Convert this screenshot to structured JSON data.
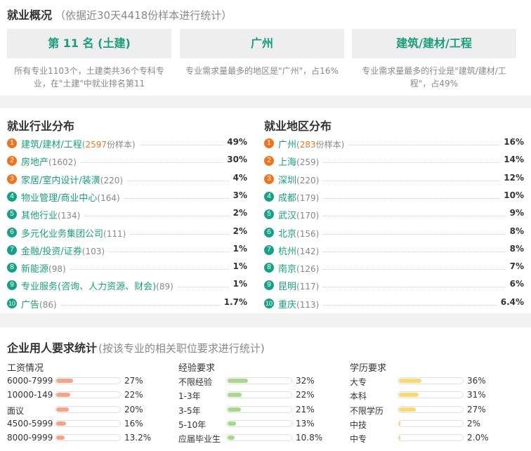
{
  "overview": {
    "title": "就业概况",
    "subtitle": "（依据近30天4418份样本进行统计）",
    "cards": [
      {
        "value": "第 11 名 (土建)",
        "desc": "所有专业1103个，土建类共36个专科专业，在\"土建\"中就业排名第11"
      },
      {
        "value": "广州",
        "desc": "专业需求量最多的地区是\"广州\"，占16%"
      },
      {
        "value": "建筑/建材/工程",
        "desc": "专业需求量最多的行业是\"建筑/建材/工程\"，占49%"
      }
    ]
  },
  "industry": {
    "title": "就业行业分布",
    "items": [
      {
        "rank": "1",
        "name": "建筑/建材/工程",
        "count": "(2597份样本)",
        "pct": "49%"
      },
      {
        "rank": "2",
        "name": "房地产",
        "count": "(1602)",
        "pct": "30%"
      },
      {
        "rank": "3",
        "name": "家居/室内设计/装潢",
        "count": "(220)",
        "pct": "4%"
      },
      {
        "rank": "4",
        "name": "物业管理/商业中心",
        "count": "(164)",
        "pct": "3%"
      },
      {
        "rank": "5",
        "name": "其他行业",
        "count": "(134)",
        "pct": "2%"
      },
      {
        "rank": "6",
        "name": "多元化业务集团公司",
        "count": "(111)",
        "pct": "2%"
      },
      {
        "rank": "7",
        "name": "金融/投资/证券",
        "count": "(103)",
        "pct": "1%"
      },
      {
        "rank": "8",
        "name": "新能源",
        "count": "(98)",
        "pct": "1%"
      },
      {
        "rank": "9",
        "name": "专业服务(咨询、人力资源、财会)",
        "count": "(89)",
        "pct": "1%"
      },
      {
        "rank": "10",
        "name": "广告",
        "count": "(86)",
        "pct": "1.7%"
      }
    ]
  },
  "region": {
    "title": "就业地区分布",
    "items": [
      {
        "rank": "1",
        "name": "广州",
        "count": "(283份样本)",
        "pct": "16%"
      },
      {
        "rank": "2",
        "name": "上海",
        "count": "(259)",
        "pct": "14%"
      },
      {
        "rank": "3",
        "name": "深圳",
        "count": "(220)",
        "pct": "12%"
      },
      {
        "rank": "4",
        "name": "成都",
        "count": "(179)",
        "pct": "10%"
      },
      {
        "rank": "5",
        "name": "武汉",
        "count": "(170)",
        "pct": "9%"
      },
      {
        "rank": "6",
        "name": "北京",
        "count": "(156)",
        "pct": "8%"
      },
      {
        "rank": "7",
        "name": "杭州",
        "count": "(142)",
        "pct": "8%"
      },
      {
        "rank": "8",
        "name": "南京",
        "count": "(126)",
        "pct": "7%"
      },
      {
        "rank": "9",
        "name": "昆明",
        "count": "(117)",
        "pct": "6%"
      },
      {
        "rank": "10",
        "name": "重庆",
        "count": "(113)",
        "pct": "6.4%"
      }
    ]
  },
  "requirements": {
    "title": "企业用人要求统计",
    "subtitle": "(按该专业的相关职位要求进行统计)",
    "columns": [
      {
        "heading": "工资情况",
        "color": "#f5a389",
        "items": [
          {
            "label": "6000-7999",
            "pct": "27%",
            "fraction": 0.27
          },
          {
            "label": "10000-149",
            "pct": "22%",
            "fraction": 0.22
          },
          {
            "label": "面议",
            "pct": "20%",
            "fraction": 0.2
          },
          {
            "label": "4500-5999",
            "pct": "16%",
            "fraction": 0.16
          },
          {
            "label": "8000-9999",
            "pct": "13.2%",
            "fraction": 0.132
          }
        ]
      },
      {
        "heading": "经验要求",
        "color": "#a8d88a",
        "items": [
          {
            "label": "不限经验",
            "pct": "32%",
            "fraction": 0.32
          },
          {
            "label": "1-3年",
            "pct": "22%",
            "fraction": 0.22
          },
          {
            "label": "3-5年",
            "pct": "21%",
            "fraction": 0.21
          },
          {
            "label": "5-10年",
            "pct": "13%",
            "fraction": 0.13
          },
          {
            "label": "应届毕业生",
            "pct": "10.8%",
            "fraction": 0.108
          }
        ]
      },
      {
        "heading": "学历要求",
        "color": "#f8d973",
        "items": [
          {
            "label": "大专",
            "pct": "36%",
            "fraction": 0.36
          },
          {
            "label": "本科",
            "pct": "31%",
            "fraction": 0.31
          },
          {
            "label": "不限学历",
            "pct": "27%",
            "fraction": 0.27
          },
          {
            "label": "中技",
            "pct": "2%",
            "fraction": 0.02
          },
          {
            "label": "中专",
            "pct": "2.0%",
            "fraction": 0.02
          }
        ]
      }
    ]
  }
}
